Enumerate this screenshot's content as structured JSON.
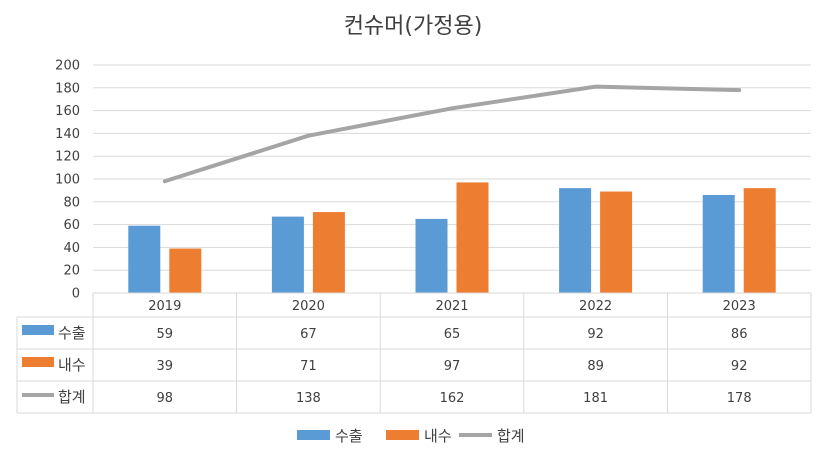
{
  "chart_data": {
    "type": "bar",
    "title": "컨슈머(가정용)",
    "categories": [
      "2019",
      "2020",
      "2021",
      "2022",
      "2023"
    ],
    "ylim": [
      0,
      200
    ],
    "yticks": [
      0,
      20,
      40,
      60,
      80,
      100,
      120,
      140,
      160,
      180,
      200
    ],
    "grid": true,
    "legend_position": "bottom",
    "series": [
      {
        "name": "수출",
        "kind": "bar",
        "color": "#5B9BD5",
        "values": [
          59,
          67,
          65,
          92,
          86
        ]
      },
      {
        "name": "내수",
        "kind": "bar",
        "color": "#ED7D31",
        "values": [
          39,
          71,
          97,
          89,
          92
        ]
      },
      {
        "name": "합계",
        "kind": "line",
        "color": "#A5A5A5",
        "values": [
          98,
          138,
          162,
          181,
          178
        ]
      }
    ]
  }
}
